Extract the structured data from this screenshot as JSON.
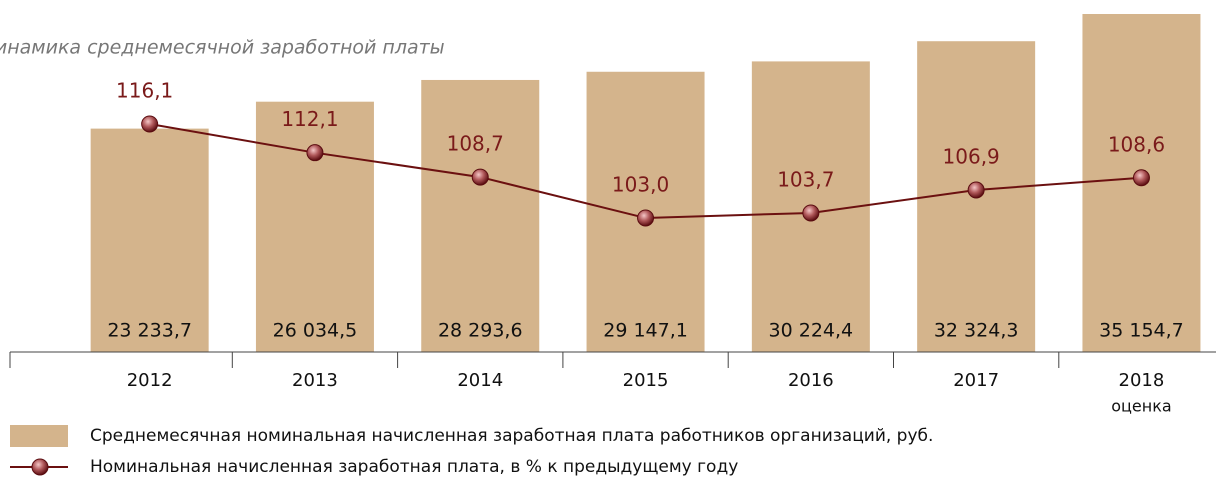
{
  "chart_data": {
    "type": "bar",
    "title": "Динамика среднемесячной заработной платы",
    "categories": [
      "2012",
      "2013",
      "2014",
      "2015",
      "2016",
      "2017",
      "2018"
    ],
    "category_note": "оценка",
    "series": [
      {
        "name": "Среднемесячная номинальная начисленная заработная плата работников организаций, руб.",
        "type": "bar",
        "color": "#d4b48c",
        "values": [
          23233.7,
          26034.5,
          28293.6,
          29147.1,
          30224.4,
          32324.3,
          35154.7
        ],
        "value_labels": [
          "23 233,7",
          "26 034,5",
          "28 293,6",
          "29 147,1",
          "30 224,4",
          "32 324,3",
          "35 154,7"
        ]
      },
      {
        "name": "Номинальная начисленная заработная плата, в % к  предыдущему году",
        "type": "line",
        "color": "#6b1010",
        "values": [
          116.1,
          112.1,
          108.7,
          103.0,
          103.7,
          106.9,
          108.6
        ],
        "value_labels": [
          "116,1",
          "112,1",
          "108,7",
          "103,0",
          "103,7",
          "106,9",
          "108,6"
        ]
      }
    ]
  }
}
